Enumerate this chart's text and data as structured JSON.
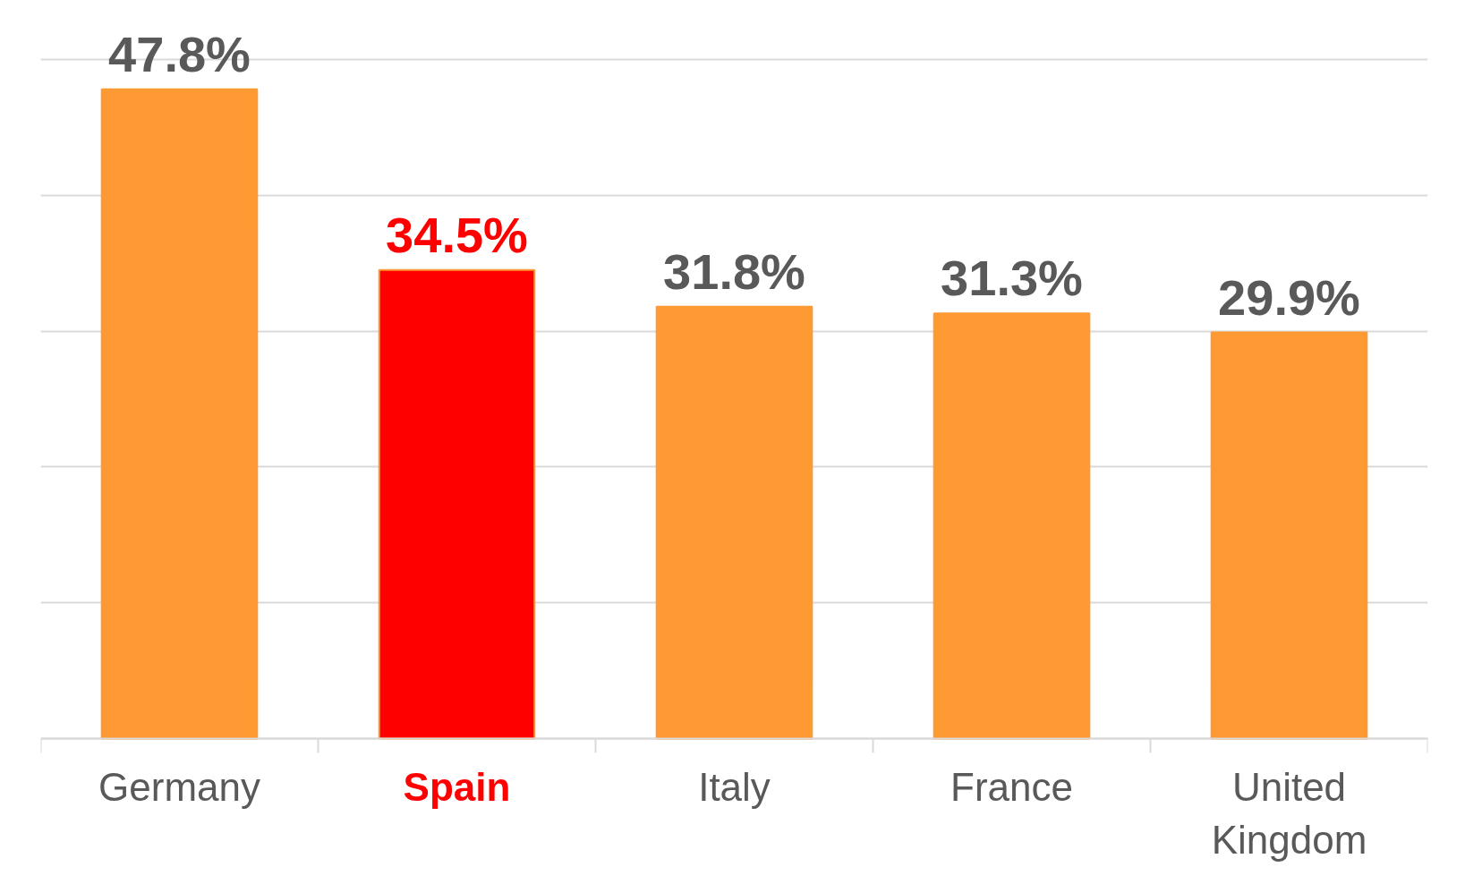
{
  "chart_data": {
    "type": "bar",
    "categories": [
      "Germany",
      "Spain",
      "Italy",
      "France",
      "United Kingdom"
    ],
    "values": [
      47.8,
      34.5,
      31.8,
      31.3,
      29.9
    ],
    "value_labels": [
      "47.8%",
      "34.5%",
      "31.8%",
      "31.3%",
      "29.9%"
    ],
    "color": "#ff9933",
    "colors": [
      "#ff9933",
      "#ff0000",
      "#ff9933",
      "#ff9933",
      "#ff9933"
    ],
    "grid": "y",
    "tick_labels": "x"
  }
}
